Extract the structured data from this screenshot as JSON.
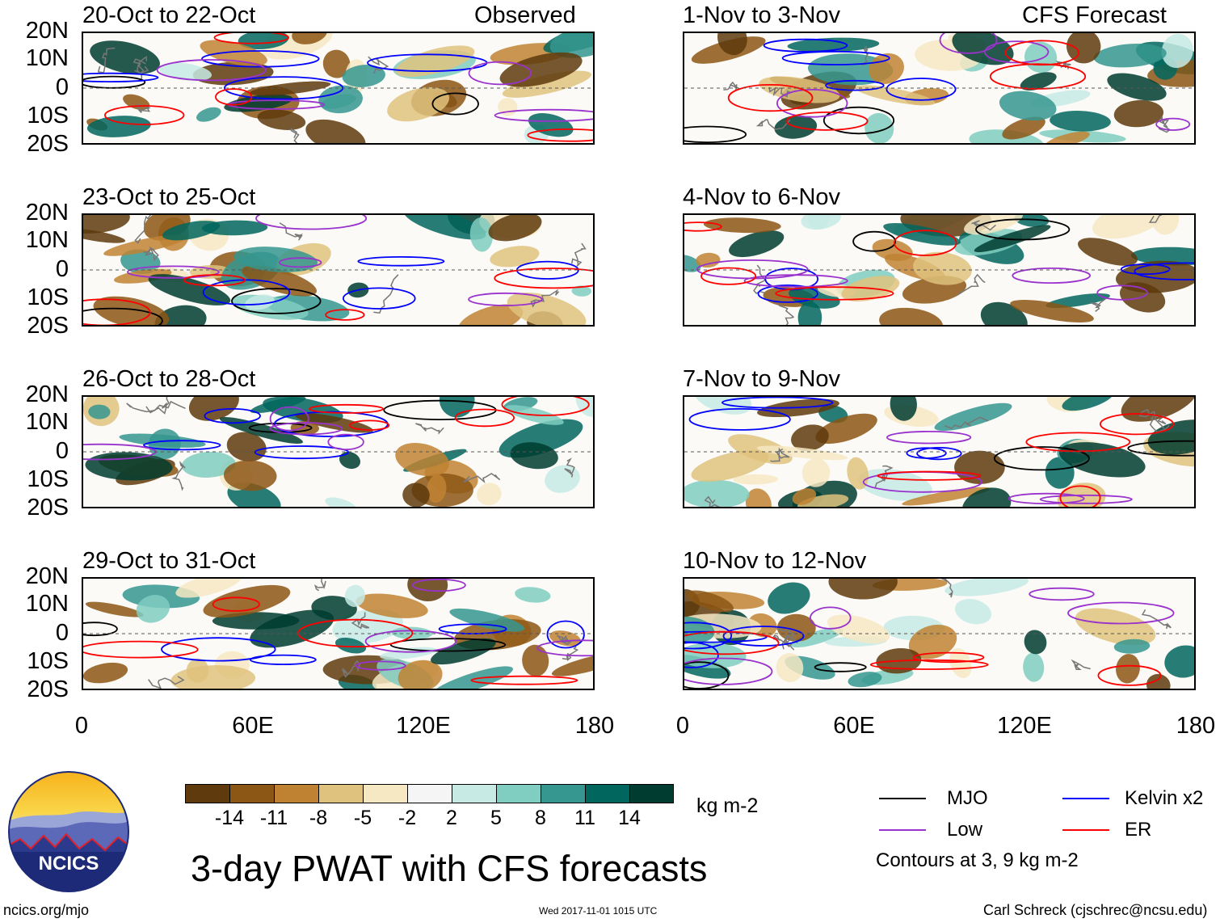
{
  "columns": {
    "left_label": "Observed",
    "right_label": "CFS Forecast"
  },
  "panels": [
    {
      "title": "20-Oct to 22-Oct"
    },
    {
      "title": "23-Oct to 25-Oct"
    },
    {
      "title": "26-Oct to 28-Oct"
    },
    {
      "title": "29-Oct to 31-Oct"
    },
    {
      "title": "1-Nov to 3-Nov"
    },
    {
      "title": "4-Nov to 6-Nov"
    },
    {
      "title": "7-Nov to 9-Nov"
    },
    {
      "title": "10-Nov to 12-Nov"
    }
  ],
  "axes": {
    "lat_labels": [
      "20N",
      "10N",
      "0",
      "10S",
      "20S"
    ],
    "lon_labels": [
      "0",
      "60E",
      "120E",
      "180"
    ],
    "lat_range": [
      -20,
      20
    ],
    "lon_range": [
      0,
      180
    ]
  },
  "colorbar": {
    "colors": [
      "#5e3a0c",
      "#8c5615",
      "#bf8232",
      "#dfc27d",
      "#f6e8c3",
      "#f5f5f5",
      "#c7eae5",
      "#80cdc1",
      "#35978f",
      "#01665e",
      "#003c30"
    ],
    "labels": [
      "-14",
      "-11",
      "-8",
      "-5",
      "-2",
      "2",
      "5",
      "8",
      "11",
      "14"
    ],
    "units": "kg m-2"
  },
  "legend": {
    "items": [
      {
        "label": "MJO",
        "color": "#000000"
      },
      {
        "label": "Kelvin x2",
        "color": "#0000ff"
      },
      {
        "label": "Low",
        "color": "#9a32cd"
      },
      {
        "label": "ER",
        "color": "#ff0000"
      }
    ],
    "contour_note": "Contours at 3, 9 kg m-2"
  },
  "title": "3-day PWAT with CFS forecasts",
  "logo_text": "NCICS",
  "footer": {
    "left": "ncics.org/mjo",
    "center": "Wed 2017-11-01 1015 UTC",
    "right": "Carl Schreck (cjschrec@ncsu.edu)"
  }
}
